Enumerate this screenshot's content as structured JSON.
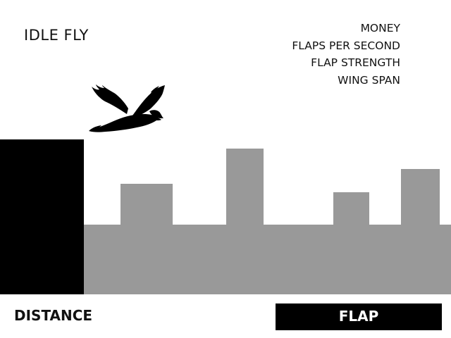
{
  "game": {
    "title": "IDLE FLY"
  },
  "stats": [
    {
      "label": "MONEY"
    },
    {
      "label": "FLAPS PER SECOND"
    },
    {
      "label": "FLAP STRENGTH"
    },
    {
      "label": "WING SPAN"
    }
  ],
  "footer": {
    "distance_label": "DISTANCE",
    "flap_button_label": "FLAP"
  },
  "colors": {
    "background": "#ffffff",
    "cliff": "#000000",
    "buildings": "#999999",
    "bird": "#000000",
    "button_bg": "#000000",
    "button_text": "#ffffff"
  },
  "icons": {
    "player": "bird-icon"
  }
}
